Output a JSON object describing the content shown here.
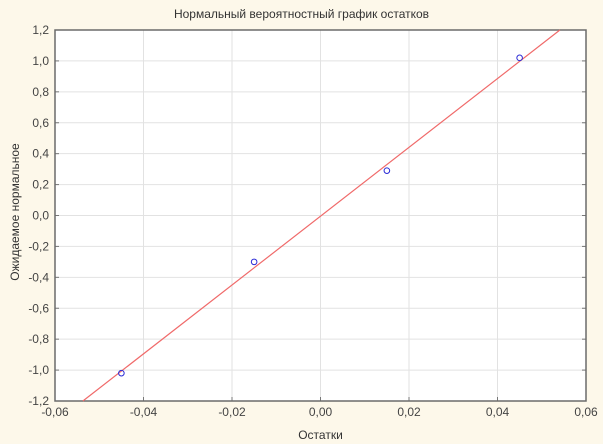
{
  "chart_data": {
    "type": "scatter",
    "title": "Нормальный вероятностный график остатков",
    "xlabel": "Остатки",
    "ylabel": "Ожидаемое нормальное",
    "xlim": [
      -0.06,
      0.06
    ],
    "ylim": [
      -1.2,
      1.2
    ],
    "xticks": [
      "-0,06",
      "-0,04",
      "-0,02",
      "0,00",
      "0,02",
      "0,04",
      "0,06"
    ],
    "yticks": [
      "-1,2",
      "-1,0",
      "-0,8",
      "-0,6",
      "-0,4",
      "-0,2",
      "0,0",
      "0,2",
      "0,4",
      "0,6",
      "0,8",
      "1,0",
      "1,2"
    ],
    "grid": true,
    "points": {
      "x": [
        -0.045,
        -0.015,
        0.015,
        0.045
      ],
      "y": [
        -1.02,
        -0.3,
        0.29,
        1.02
      ]
    },
    "fit_line": {
      "x": [
        -0.0537,
        0.0541
      ],
      "y": [
        -1.2,
        1.2
      ]
    },
    "colors": {
      "points": "#2b2bd6",
      "line": "#f06a6a",
      "background": "#fdf8ea"
    }
  }
}
